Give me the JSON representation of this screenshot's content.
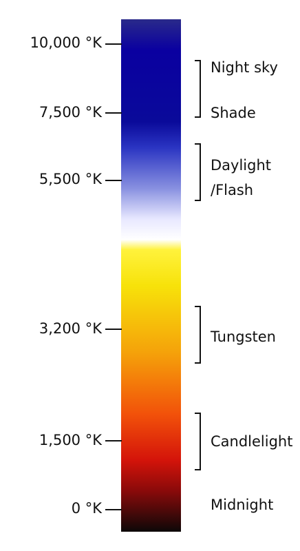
{
  "scale": {
    "colors": {
      "stop_0": "#2a2a8a",
      "stop_1": "#0a00a0",
      "stop_2": "#0a0a9a",
      "stop_3": "#2a34c2",
      "stop_4": "#8890e0",
      "stop_5": "#e8e8ff",
      "stop_6": "#ffffff",
      "stop_7": "#fff23c",
      "stop_8": "#f7e20a",
      "stop_9": "#f5a20a",
      "stop_10": "#f2520a",
      "stop_11": "#d4140a",
      "stop_12": "#8a0a0a",
      "stop_13": "#0d0808"
    },
    "ticks": [
      {
        "label": "10,000 °K",
        "kelvin": 10000
      },
      {
        "label": "7,500 °K",
        "kelvin": 7500
      },
      {
        "label": "5,500 °K",
        "kelvin": 5500
      },
      {
        "label": "3,200 °K",
        "kelvin": 3200
      },
      {
        "label": "1,500 °K",
        "kelvin": 1500
      },
      {
        "label": "0 °K",
        "kelvin": 0
      }
    ]
  },
  "ranges": {
    "night_sky": "Night sky",
    "shade": "Shade",
    "daylight_line1": "Daylight",
    "daylight_line2": "/Flash",
    "tungsten": "Tungsten",
    "candlelight": "Candlelight",
    "midnight": "Midnight"
  }
}
